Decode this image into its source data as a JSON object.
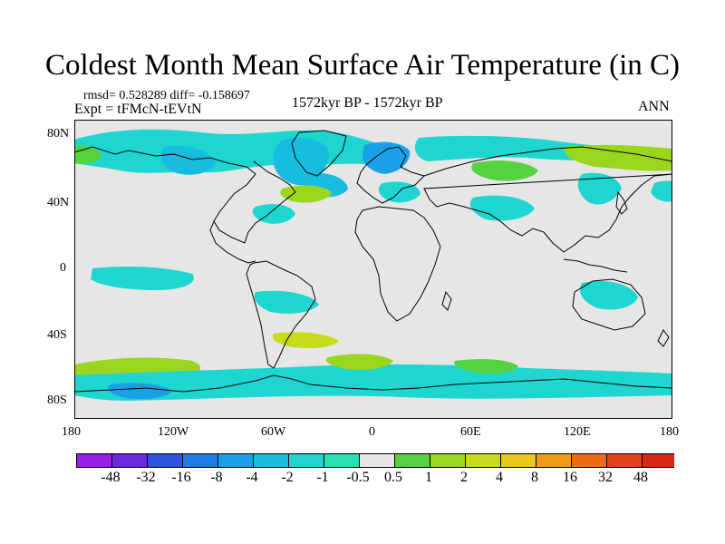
{
  "header": {
    "title": "Coldest Month Mean Surface Air Temperature (in C)",
    "stats": "rmsd= 0.528289 diff= -0.158697",
    "experiment": "Expt = tFMcN-tEVtN",
    "period": "1572kyr BP - 1572kyr BP",
    "season": "ANN"
  },
  "axes": {
    "lat_ticks": [
      "80N",
      "40N",
      "0",
      "40S",
      "80S"
    ],
    "lon_ticks": [
      "180",
      "120W",
      "60W",
      "0",
      "60E",
      "120E",
      "180"
    ]
  },
  "colorbar": {
    "colors": [
      "#9a1fe8",
      "#6a2ae0",
      "#2f52e0",
      "#1e7be8",
      "#1aa0e8",
      "#16bde0",
      "#1ed6cf",
      "#28e2b4",
      "#e6e6e6",
      "#56d23e",
      "#9bd61f",
      "#c8dc1c",
      "#e6c81a",
      "#ee9c18",
      "#ee6a17",
      "#e6401a",
      "#d82812"
    ],
    "labels": [
      "-48",
      "-32",
      "-16",
      "-8",
      "-4",
      "-2",
      "-1",
      "-0.5",
      "0.5",
      "1",
      "2",
      "4",
      "8",
      "16",
      "32",
      "48"
    ]
  },
  "map_colors": {
    "ocean": "#e6e6e6",
    "coast": "#000000"
  }
}
